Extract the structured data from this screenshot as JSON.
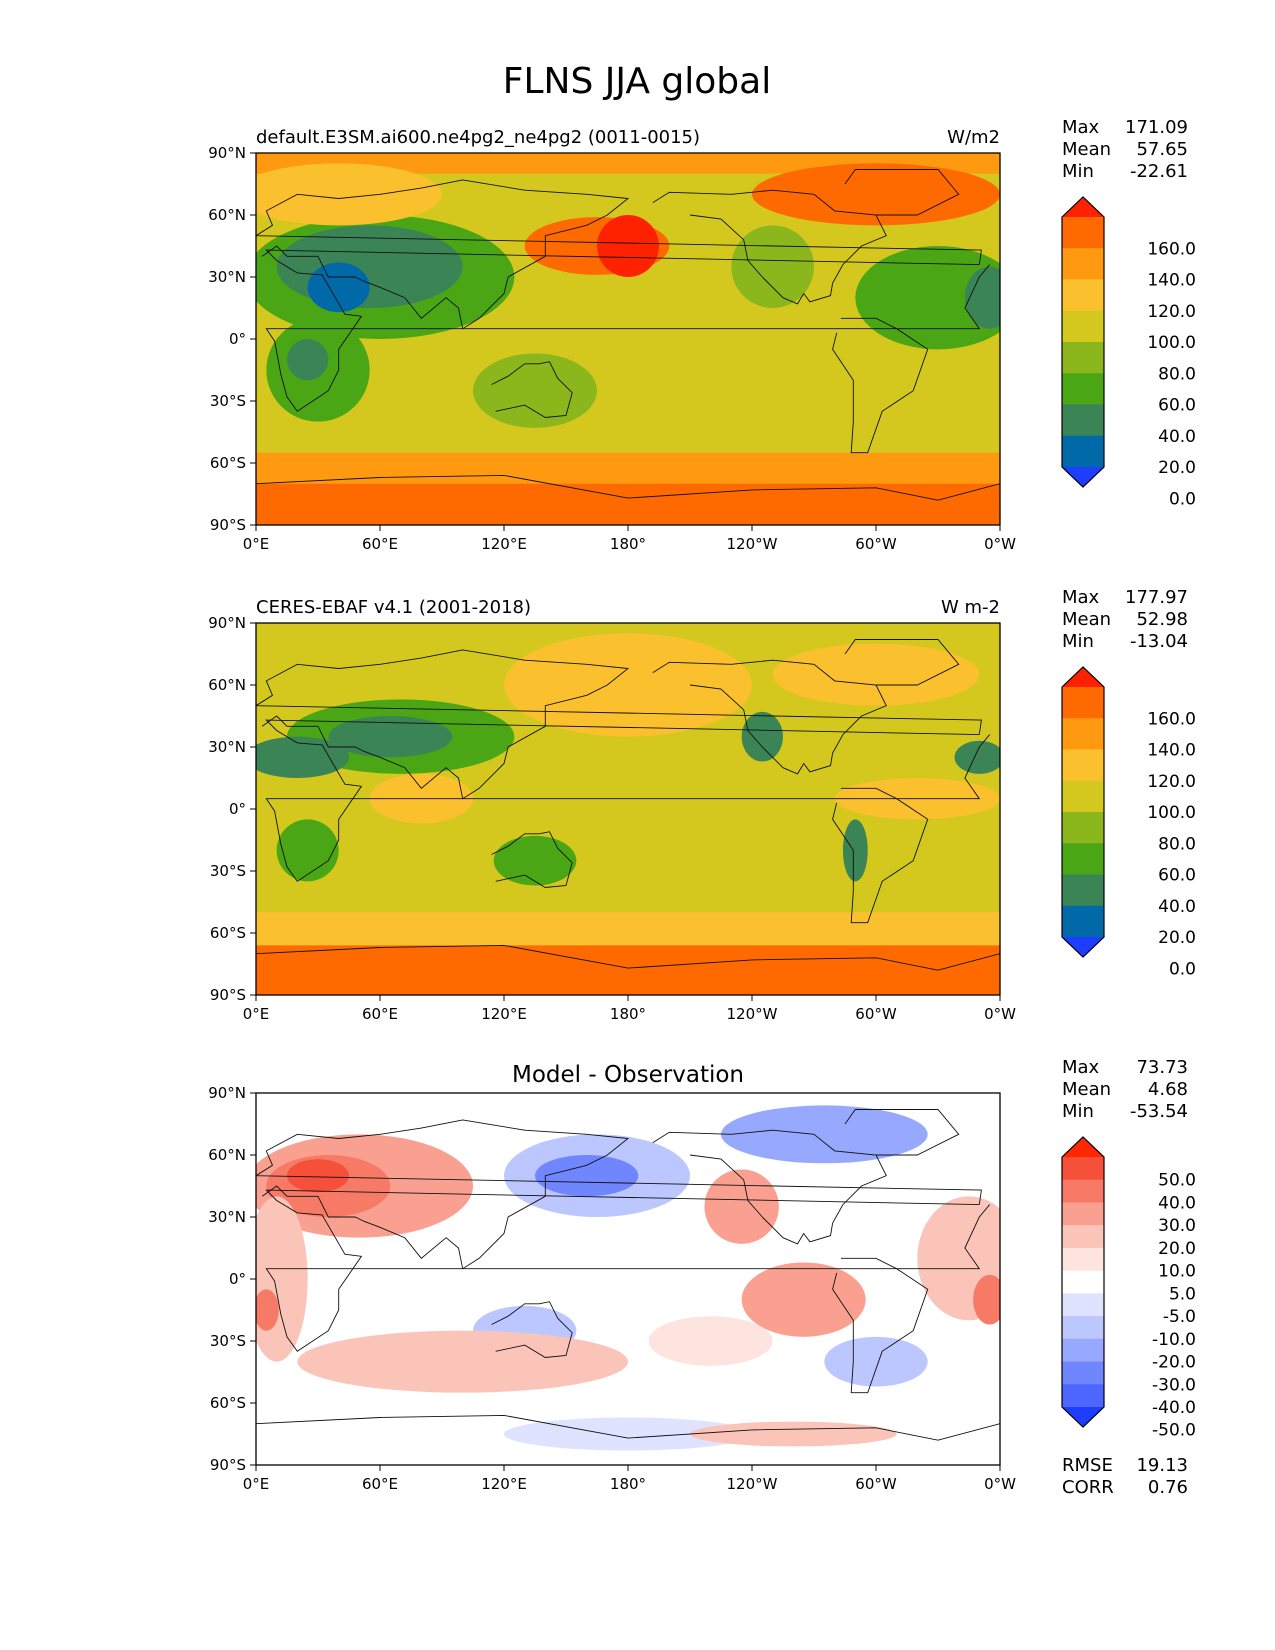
{
  "title": "FLNS JJA global",
  "chart_data": [
    {
      "type": "heatmap",
      "title_left": "default.E3SM.ai600.ne4pg2_ne4pg2 (0011-0015)",
      "title_right": "W/m2",
      "title_center": "",
      "x_ticks": [
        "0°E",
        "60°E",
        "120°E",
        "180°",
        "120°W",
        "60°W",
        "0°W"
      ],
      "y_ticks": [
        "90°N",
        "60°N",
        "30°N",
        "0°",
        "30°S",
        "60°S",
        "90°S"
      ],
      "x_range": [
        0,
        360
      ],
      "y_range": [
        -90,
        90
      ],
      "stats": [
        {
          "label": "Max",
          "value": "171.09"
        },
        {
          "label": "Mean",
          "value": "57.65"
        },
        {
          "label": "Min",
          "value": "-22.61"
        }
      ],
      "colorbar": {
        "levels": [
          "160.0",
          "140.0",
          "120.0",
          "100.0",
          "80.0",
          "60.0",
          "40.0",
          "20.0",
          "0.0"
        ],
        "colors": [
          "#ff2200",
          "#ff6a00",
          "#ff9a10",
          "#fbc02d",
          "#d4c81f",
          "#8bb71c",
          "#4aa614",
          "#3a8456",
          "#0069a8",
          "#1f3dff"
        ]
      },
      "blobs": [
        {
          "lon": 60,
          "lat": 30,
          "rx": 65,
          "ry": 30,
          "level": 6
        },
        {
          "lon": 55,
          "lat": 35,
          "rx": 45,
          "ry": 20,
          "level": 7
        },
        {
          "lon": 40,
          "lat": 25,
          "rx": 15,
          "ry": 12,
          "level": 8
        },
        {
          "lon": 30,
          "lat": -15,
          "rx": 25,
          "ry": 25,
          "level": 6
        },
        {
          "lon": 25,
          "lat": -10,
          "rx": 10,
          "ry": 10,
          "level": 7
        },
        {
          "lon": 135,
          "lat": -25,
          "rx": 30,
          "ry": 18,
          "level": 5
        },
        {
          "lon": 165,
          "lat": 45,
          "rx": 35,
          "ry": 14,
          "level": 1
        },
        {
          "lon": 180,
          "lat": 45,
          "rx": 15,
          "ry": 15,
          "level": 0
        },
        {
          "lon": 250,
          "lat": 35,
          "rx": 20,
          "ry": 20,
          "level": 5
        },
        {
          "lon": 330,
          "lat": 20,
          "rx": 40,
          "ry": 25,
          "level": 6
        },
        {
          "lon": 355,
          "lat": 20,
          "rx": 12,
          "ry": 15,
          "level": 7
        },
        {
          "lon": 300,
          "lat": 70,
          "rx": 60,
          "ry": 15,
          "level": 1
        },
        {
          "lon": 40,
          "lat": 70,
          "rx": 50,
          "ry": 15,
          "level": 3
        }
      ],
      "bands": [
        {
          "lat_top": 90,
          "lat_bottom": 80,
          "level": 2
        },
        {
          "lat_top": -55,
          "lat_bottom": -70,
          "level": 2
        },
        {
          "lat_top": -70,
          "lat_bottom": -90,
          "level": 1
        }
      ],
      "base_level": 4
    },
    {
      "type": "heatmap",
      "title_left": "CERES-EBAF v4.1 (2001-2018)",
      "title_right": "W m-2",
      "title_center": "",
      "x_ticks": [
        "0°E",
        "60°E",
        "120°E",
        "180°",
        "120°W",
        "60°W",
        "0°W"
      ],
      "y_ticks": [
        "90°N",
        "60°N",
        "30°N",
        "0°",
        "30°S",
        "60°S",
        "90°S"
      ],
      "x_range": [
        0,
        360
      ],
      "y_range": [
        -90,
        90
      ],
      "stats": [
        {
          "label": "Max",
          "value": "177.97"
        },
        {
          "label": "Mean",
          "value": "52.98"
        },
        {
          "label": "Min",
          "value": "-13.04"
        }
      ],
      "colorbar": {
        "levels": [
          "160.0",
          "140.0",
          "120.0",
          "100.0",
          "80.0",
          "60.0",
          "40.0",
          "20.0",
          "0.0"
        ],
        "colors": [
          "#ff2200",
          "#ff6a00",
          "#ff9a10",
          "#fbc02d",
          "#d4c81f",
          "#8bb71c",
          "#4aa614",
          "#3a8456",
          "#0069a8",
          "#1f3dff"
        ]
      },
      "blobs": [
        {
          "lon": 70,
          "lat": 35,
          "rx": 55,
          "ry": 18,
          "level": 6
        },
        {
          "lon": 65,
          "lat": 35,
          "rx": 30,
          "ry": 10,
          "level": 7
        },
        {
          "lon": 20,
          "lat": 25,
          "rx": 25,
          "ry": 10,
          "level": 7
        },
        {
          "lon": 25,
          "lat": -20,
          "rx": 15,
          "ry": 15,
          "level": 6
        },
        {
          "lon": 135,
          "lat": -25,
          "rx": 20,
          "ry": 12,
          "level": 6
        },
        {
          "lon": 245,
          "lat": 35,
          "rx": 10,
          "ry": 12,
          "level": 7
        },
        {
          "lon": 290,
          "lat": -20,
          "rx": 6,
          "ry": 15,
          "level": 7
        },
        {
          "lon": 350,
          "lat": 25,
          "rx": 12,
          "ry": 8,
          "level": 7
        },
        {
          "lon": 180,
          "lat": 60,
          "rx": 60,
          "ry": 25,
          "level": 3
        },
        {
          "lon": 300,
          "lat": 65,
          "rx": 50,
          "ry": 15,
          "level": 3
        },
        {
          "lon": 80,
          "lat": 5,
          "rx": 25,
          "ry": 12,
          "level": 3
        },
        {
          "lon": 320,
          "lat": 5,
          "rx": 40,
          "ry": 10,
          "level": 3
        }
      ],
      "bands": [
        {
          "lat_top": -50,
          "lat_bottom": -66,
          "level": 3
        },
        {
          "lat_top": -66,
          "lat_bottom": -90,
          "level": 1
        }
      ],
      "base_level": 4
    },
    {
      "type": "heatmap",
      "title_left": "",
      "title_right": "",
      "title_center": "Model - Observation",
      "x_ticks": [
        "0°E",
        "60°E",
        "120°E",
        "180°",
        "120°W",
        "60°W",
        "0°W"
      ],
      "y_ticks": [
        "90°N",
        "60°N",
        "30°N",
        "0°",
        "30°S",
        "60°S",
        "90°S"
      ],
      "x_range": [
        0,
        360
      ],
      "y_range": [
        -90,
        90
      ],
      "stats": [
        {
          "label": "Max",
          "value": "73.73"
        },
        {
          "label": "Mean",
          "value": "4.68"
        },
        {
          "label": "Min",
          "value": "-53.54"
        }
      ],
      "colorbar": {
        "levels": [
          "50.0",
          "40.0",
          "30.0",
          "20.0",
          "10.0",
          "5.0",
          "-5.0",
          "-10.0",
          "-20.0",
          "-30.0",
          "-40.0",
          "-50.0"
        ],
        "colors": [
          "#ff2800",
          "#f6503a",
          "#f77a66",
          "#f9a090",
          "#fbc4b8",
          "#fde4de",
          "#ffffff",
          "#dfe3ff",
          "#bcc6ff",
          "#97a8ff",
          "#6f86ff",
          "#4d66ff",
          "#1f3dff"
        ]
      },
      "blobs": [
        {
          "lon": 50,
          "lat": 45,
          "rx": 55,
          "ry": 25,
          "level": 3
        },
        {
          "lon": 35,
          "lat": 45,
          "rx": 30,
          "ry": 15,
          "level": 2
        },
        {
          "lon": 30,
          "lat": 50,
          "rx": 15,
          "ry": 8,
          "level": 1
        },
        {
          "lon": 10,
          "lat": 0,
          "rx": 15,
          "ry": 40,
          "level": 4
        },
        {
          "lon": 5,
          "lat": -15,
          "rx": 6,
          "ry": 10,
          "level": 2
        },
        {
          "lon": 130,
          "lat": -25,
          "rx": 25,
          "ry": 12,
          "level": 8
        },
        {
          "lon": 165,
          "lat": 50,
          "rx": 45,
          "ry": 20,
          "level": 8
        },
        {
          "lon": 160,
          "lat": 50,
          "rx": 25,
          "ry": 10,
          "level": 10
        },
        {
          "lon": 275,
          "lat": 70,
          "rx": 50,
          "ry": 14,
          "level": 9
        },
        {
          "lon": 235,
          "lat": 35,
          "rx": 18,
          "ry": 18,
          "level": 3
        },
        {
          "lon": 265,
          "lat": -10,
          "rx": 30,
          "ry": 18,
          "level": 3
        },
        {
          "lon": 345,
          "lat": 10,
          "rx": 25,
          "ry": 30,
          "level": 4
        },
        {
          "lon": 355,
          "lat": -10,
          "rx": 8,
          "ry": 12,
          "level": 2
        },
        {
          "lon": 300,
          "lat": -40,
          "rx": 25,
          "ry": 12,
          "level": 8
        },
        {
          "lon": 100,
          "lat": -40,
          "rx": 80,
          "ry": 15,
          "level": 4
        },
        {
          "lon": 220,
          "lat": -30,
          "rx": 30,
          "ry": 12,
          "level": 5
        },
        {
          "lon": 180,
          "lat": -75,
          "rx": 60,
          "ry": 8,
          "level": 7
        },
        {
          "lon": 260,
          "lat": -75,
          "rx": 50,
          "ry": 6,
          "level": 4
        }
      ],
      "bands": [],
      "base_level": 6,
      "summary": [
        {
          "label": "RMSE",
          "value": "19.13"
        },
        {
          "label": "CORR",
          "value": "0.76"
        }
      ]
    }
  ]
}
